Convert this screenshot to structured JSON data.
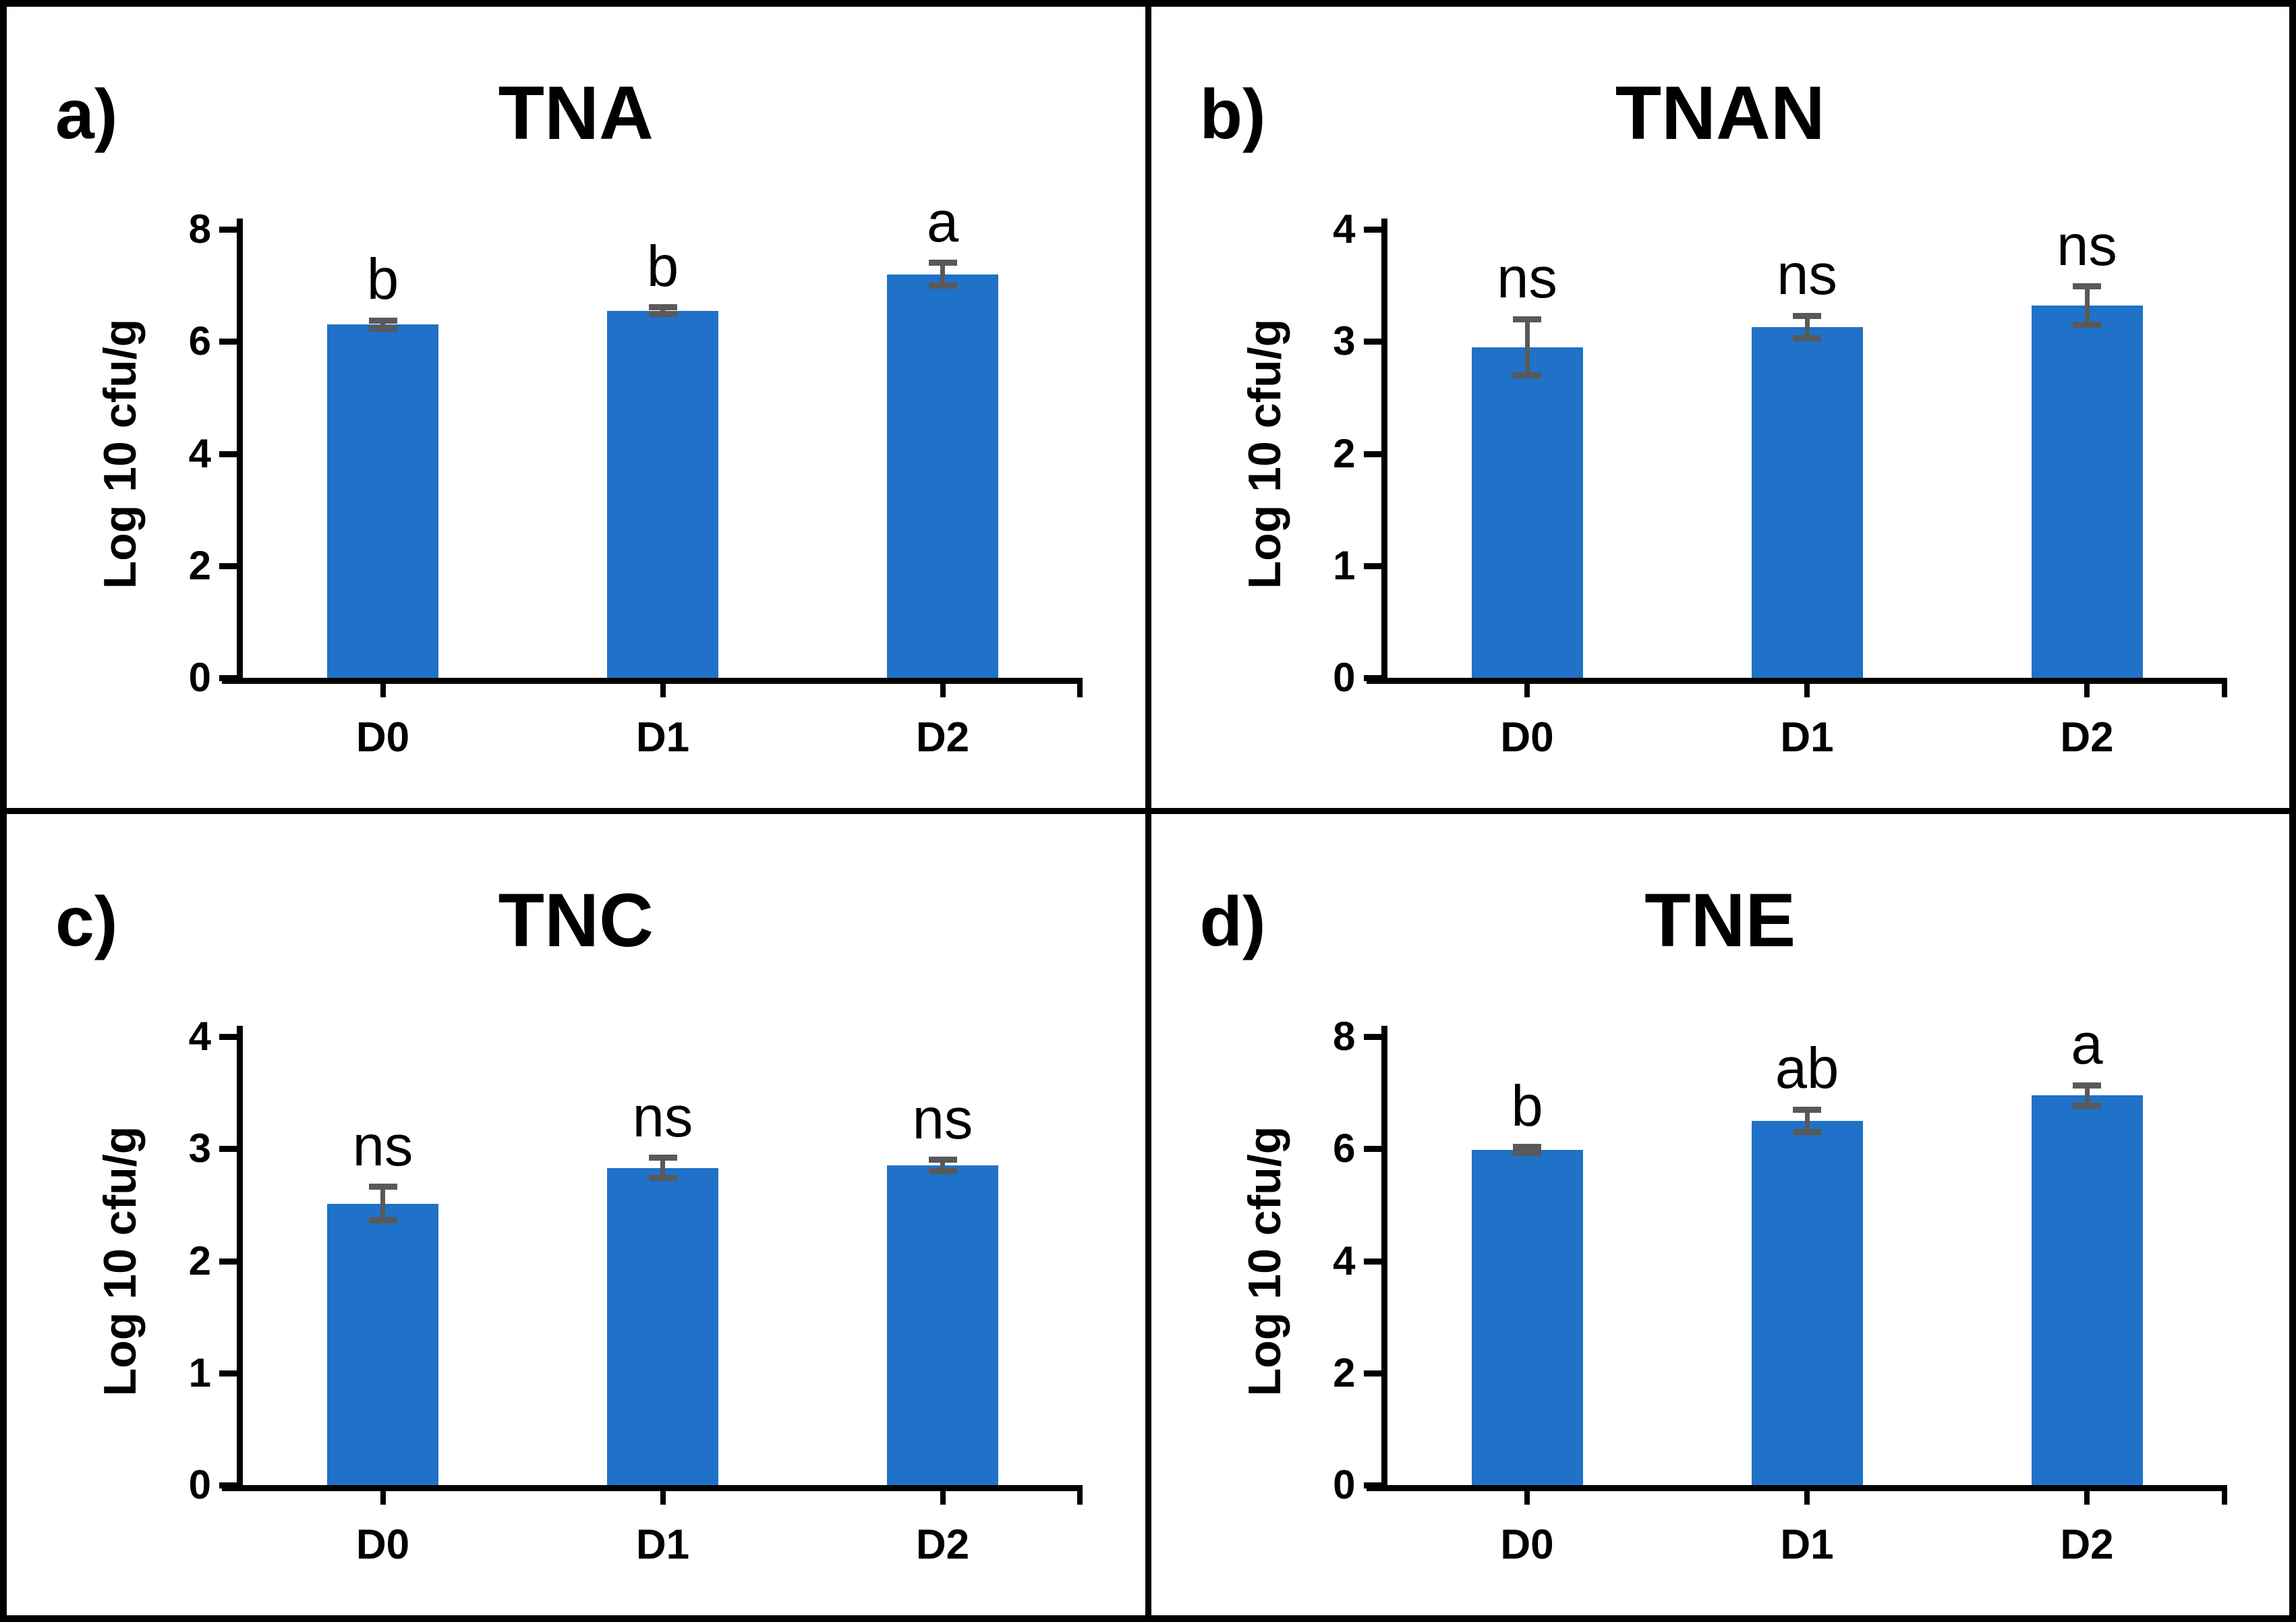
{
  "figure": {
    "kind": "2x2 grid of bar charts",
    "background_color": "#ffffff",
    "frame_color": "#000000",
    "bar_color": "#1f72c7",
    "error_bar_color": "#595959",
    "text_color": "#000000"
  },
  "chart_data": [
    {
      "type": "bar",
      "panel_label": "a)",
      "title": "TNA",
      "ylabel": "Log 10 cfu/g",
      "xlabel": "",
      "categories": [
        "D0",
        "D1",
        "D2"
      ],
      "values": [
        6.3,
        6.55,
        7.2
      ],
      "errors": [
        0.07,
        0.06,
        0.2
      ],
      "sig_labels": [
        "b",
        "b",
        "a"
      ],
      "ylim": [
        0,
        8
      ],
      "yticks": [
        0,
        2,
        4,
        6,
        8
      ],
      "grid": false,
      "legend": false
    },
    {
      "type": "bar",
      "panel_label": "b)",
      "title": "TNAN",
      "ylabel": "Log 10 cfu/g",
      "xlabel": "",
      "categories": [
        "D0",
        "D1",
        "D2"
      ],
      "values": [
        2.95,
        3.13,
        3.32
      ],
      "errors": [
        0.25,
        0.1,
        0.17
      ],
      "sig_labels": [
        "ns",
        "ns",
        "ns"
      ],
      "ylim": [
        0,
        4
      ],
      "yticks": [
        0,
        1,
        2,
        3,
        4
      ],
      "grid": false,
      "legend": false
    },
    {
      "type": "bar",
      "panel_label": "c)",
      "title": "TNC",
      "ylabel": "Log 10 cfu/g",
      "xlabel": "",
      "categories": [
        "D0",
        "D1",
        "D2"
      ],
      "values": [
        2.51,
        2.83,
        2.85
      ],
      "errors": [
        0.15,
        0.09,
        0.05
      ],
      "sig_labels": [
        "ns",
        "ns",
        "ns"
      ],
      "ylim": [
        0,
        4
      ],
      "yticks": [
        0,
        1,
        2,
        3,
        4
      ],
      "grid": false,
      "legend": false
    },
    {
      "type": "bar",
      "panel_label": "d)",
      "title": "TNE",
      "ylabel": "Log 10 cfu/g",
      "xlabel": "",
      "categories": [
        "D0",
        "D1",
        "D2"
      ],
      "values": [
        5.98,
        6.5,
        6.95
      ],
      "errors": [
        0.05,
        0.2,
        0.18
      ],
      "sig_labels": [
        "b",
        "ab",
        "a"
      ],
      "ylim": [
        0,
        8
      ],
      "yticks": [
        0,
        2,
        4,
        6,
        8
      ],
      "grid": false,
      "legend": false
    }
  ]
}
